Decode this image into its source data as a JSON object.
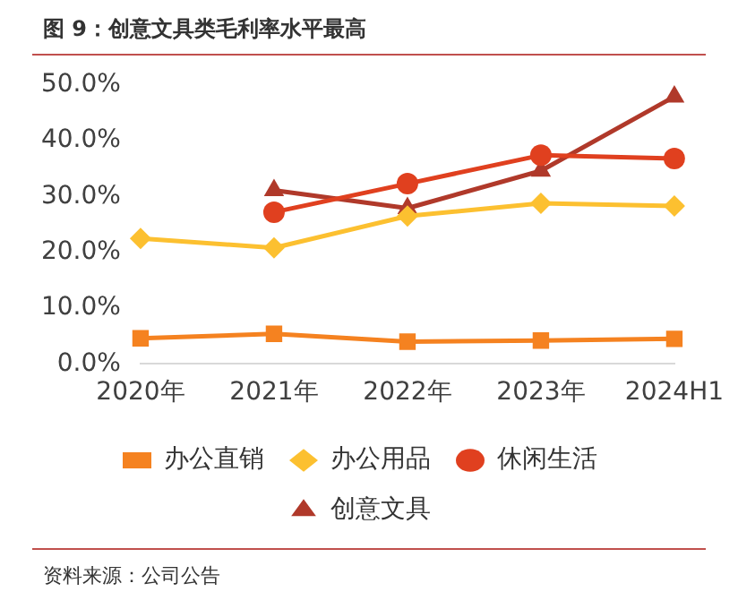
{
  "chart_data": {
    "type": "line",
    "title": "图 9：创意文具类毛利率水平最高",
    "categories": [
      "2020年",
      "2021年",
      "2022年",
      "2023年",
      "2024H1"
    ],
    "series": [
      {
        "name": "办公直销",
        "color": "#f58220",
        "marker": "square",
        "values": [
          4.6,
          5.4,
          4.0,
          4.2,
          4.5
        ]
      },
      {
        "name": "办公用品",
        "color": "#fcc030",
        "marker": "diamond",
        "values": [
          22.5,
          20.8,
          26.5,
          28.8,
          28.3
        ]
      },
      {
        "name": "休闲生活",
        "color": "#e0401f",
        "marker": "circle",
        "values": [
          null,
          27.2,
          32.3,
          37.4,
          36.8
        ]
      },
      {
        "name": "创意文具",
        "color": "#b0392a",
        "marker": "triangle",
        "values": [
          null,
          31.1,
          27.9,
          34.6,
          47.9
        ]
      }
    ],
    "ylim": [
      0,
      50
    ],
    "yticks": [
      {
        "value": 0,
        "label": "0.0%"
      },
      {
        "value": 10,
        "label": "10.0%"
      },
      {
        "value": 20,
        "label": "20.0%"
      },
      {
        "value": 30,
        "label": "30.0%"
      },
      {
        "value": 40,
        "label": "40.0%"
      },
      {
        "value": 50,
        "label": "50.0%"
      }
    ],
    "grid": false,
    "legend": "bottom",
    "annotations": [
      "资料来源：公司公告"
    ]
  }
}
